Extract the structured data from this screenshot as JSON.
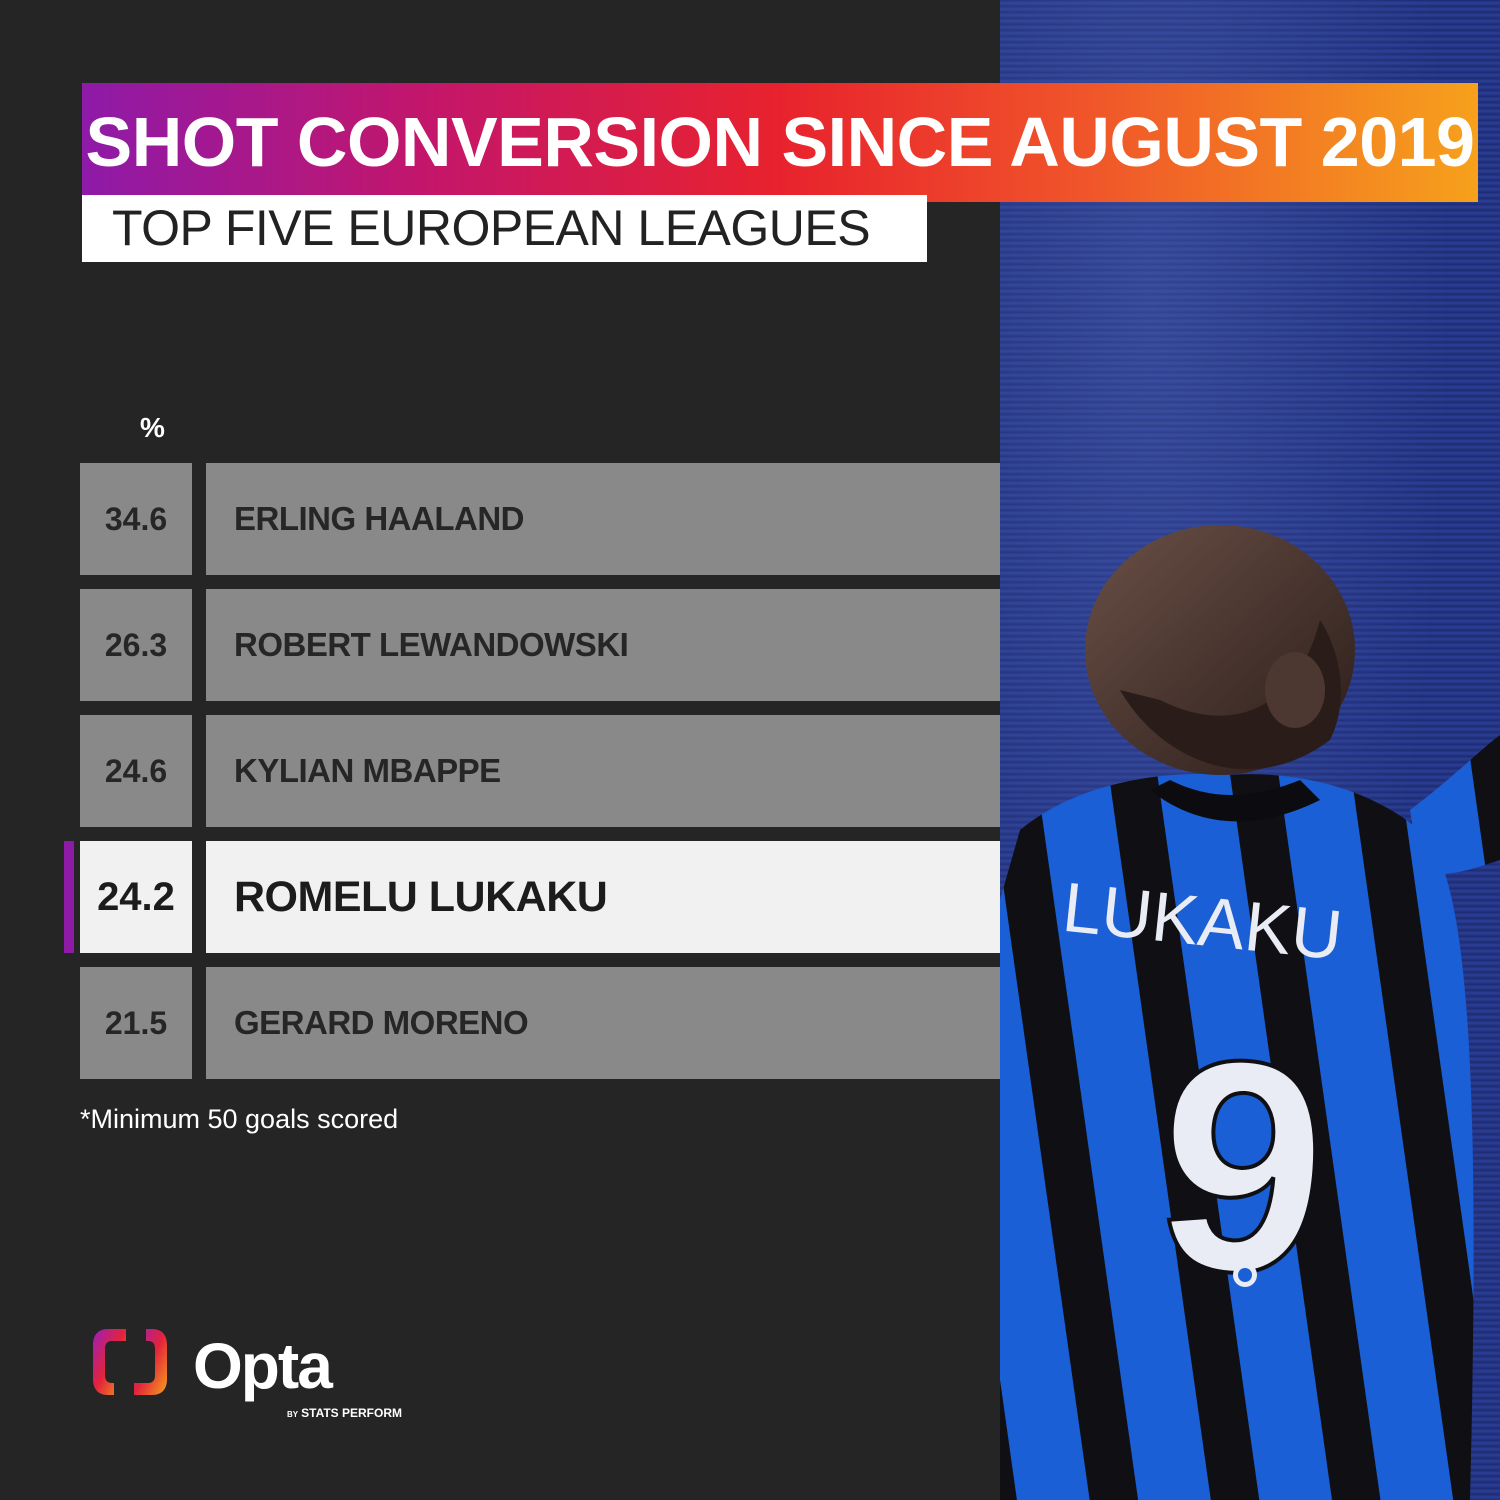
{
  "title": "SHOT CONVERSION SINCE AUGUST 2019",
  "subtitle": "TOP FIVE EUROPEAN LEAGUES",
  "unit_label": "%",
  "footnote": "*Minimum 50 goals scored",
  "logo": {
    "word": "Opta",
    "tag_by": "BY",
    "tag_brand": "STATS PERFORM"
  },
  "colors": {
    "title_gradient": [
      "#8e1aa8",
      "#c4166a",
      "#e8222d",
      "#f0552a",
      "#f6a11c"
    ],
    "highlight_accent": "#8e1aa8",
    "row_background": "#898989",
    "highlight_background": "#f1f1f1"
  },
  "chart_data": {
    "type": "table",
    "title": "SHOT CONVERSION SINCE AUGUST 2019",
    "subtitle": "TOP FIVE EUROPEAN LEAGUES",
    "unit": "%",
    "rows": [
      {
        "value": "34.6",
        "player": "ERLING HAALAND",
        "highlight": false
      },
      {
        "value": "26.3",
        "player": "ROBERT LEWANDOWSKI",
        "highlight": false
      },
      {
        "value": "24.6",
        "player": "KYLIAN MBAPPE",
        "highlight": false
      },
      {
        "value": "24.2",
        "player": "ROMELU LUKAKU",
        "highlight": true
      },
      {
        "value": "21.5",
        "player": "GERARD MORENO",
        "highlight": false
      }
    ]
  },
  "photo": {
    "jersey_name": "LUKAKU",
    "jersey_number": "9"
  }
}
